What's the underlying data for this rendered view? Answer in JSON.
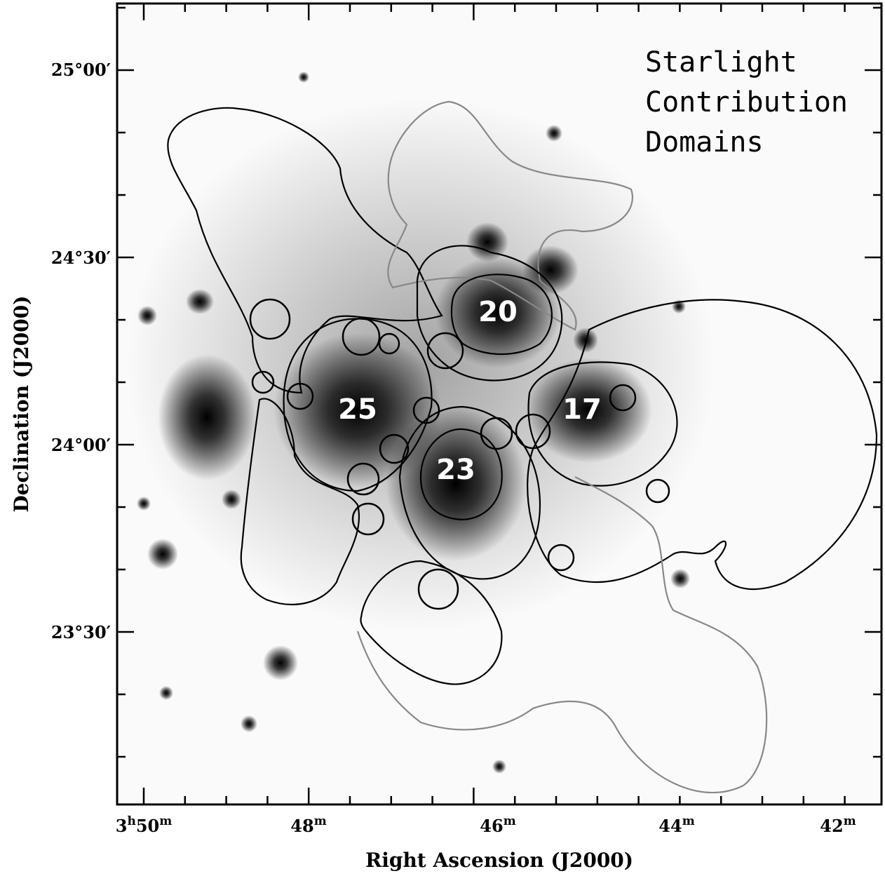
{
  "annotation": {
    "lines": [
      "Starlight",
      "Contribution",
      "Domains"
    ]
  },
  "x_axis": {
    "label": "Right Ascension (J2000)",
    "ticks": [
      [
        "3",
        "h",
        "50",
        "m"
      ],
      [
        "48",
        "m"
      ],
      [
        "46",
        "m"
      ],
      [
        "44",
        "m"
      ],
      [
        "42",
        "m"
      ]
    ]
  },
  "y_axis": {
    "label": "Declination (J2000)",
    "ticks": [
      "25°00′",
      "24°30′",
      "24°00′",
      "23°30′"
    ]
  },
  "domains": [
    {
      "label": "20"
    },
    {
      "label": "25"
    },
    {
      "label": "17"
    },
    {
      "label": "23"
    }
  ]
}
